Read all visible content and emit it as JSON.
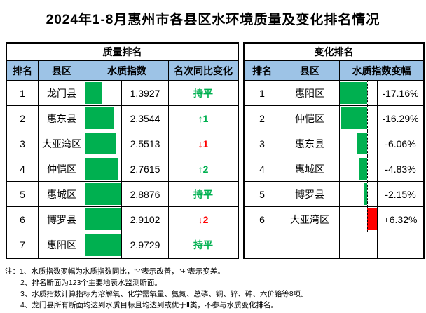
{
  "title": "2024年1-8月惠州市各县区水环境质量及变化排名情况",
  "colors": {
    "header_blue": "#9DC3E6",
    "bar_green": "#00B050",
    "bar_red": "#FF0000",
    "text_green": "#00B050",
    "text_red": "#FF0000"
  },
  "quality_table": {
    "title": "质量排名",
    "headers": {
      "rank": "排名",
      "district": "县区",
      "index": "水质指数",
      "change": "名次同比变化"
    },
    "rows": [
      {
        "rank": "1",
        "district": "龙门县",
        "wqi": "1.3927",
        "bar_pct": 46.8,
        "change": "持平",
        "trend": "flat"
      },
      {
        "rank": "2",
        "district": "惠东县",
        "wqi": "2.3544",
        "bar_pct": 79.2,
        "change": "↑1",
        "trend": "up"
      },
      {
        "rank": "3",
        "district": "大亚湾区",
        "wqi": "2.5513",
        "bar_pct": 85.8,
        "change": "↓1",
        "trend": "down"
      },
      {
        "rank": "4",
        "district": "仲恺区",
        "wqi": "2.7615",
        "bar_pct": 92.9,
        "change": "↑2",
        "trend": "up"
      },
      {
        "rank": "5",
        "district": "惠城区",
        "wqi": "2.8876",
        "bar_pct": 97.1,
        "change": "持平",
        "trend": "flat"
      },
      {
        "rank": "6",
        "district": "博罗县",
        "wqi": "2.9102",
        "bar_pct": 97.9,
        "change": "↓2",
        "trend": "down"
      },
      {
        "rank": "7",
        "district": "惠阳区",
        "wqi": "2.9729",
        "bar_pct": 100,
        "change": "持平",
        "trend": "flat"
      }
    ]
  },
  "change_table": {
    "title": "变化排名",
    "headers": {
      "rank": "排名",
      "district": "县区",
      "delta": "水质指数变幅"
    },
    "axis_pct": 73.1,
    "rows": [
      {
        "rank": "1",
        "district": "惠阳区",
        "delta": "-17.16%",
        "bar_pct": 73.1,
        "side": "neg"
      },
      {
        "rank": "2",
        "district": "仲恺区",
        "delta": "-16.29%",
        "bar_pct": 69.4,
        "side": "neg"
      },
      {
        "rank": "3",
        "district": "惠东县",
        "delta": "-6.06%",
        "bar_pct": 25.8,
        "side": "neg"
      },
      {
        "rank": "4",
        "district": "惠城区",
        "delta": "-4.83%",
        "bar_pct": 20.6,
        "side": "neg"
      },
      {
        "rank": "5",
        "district": "博罗县",
        "delta": "-2.15%",
        "bar_pct": 9.2,
        "side": "neg"
      },
      {
        "rank": "6",
        "district": "大亚湾区",
        "delta": "+6.32%",
        "bar_pct": 26.9,
        "side": "pos"
      },
      {
        "rank": "",
        "district": "",
        "delta": "",
        "bar_pct": 0,
        "side": "none"
      }
    ]
  },
  "notes": {
    "prefix": "注：",
    "lines": [
      "1、水质指数变幅为水质指数同比，\"-\"表示改善，\"+\"表示变差。",
      "2、排名断面为123个主要地表水监测断面。",
      "3、水质指数计算指标为溶解氧、化学需氧量、氨氮、总磷、铜、锌、砷、六价铬等8项。",
      "4、龙门县所有断面均达到水质目标且均达到或优于Ⅱ类，不参与水质变化排名。"
    ]
  }
}
